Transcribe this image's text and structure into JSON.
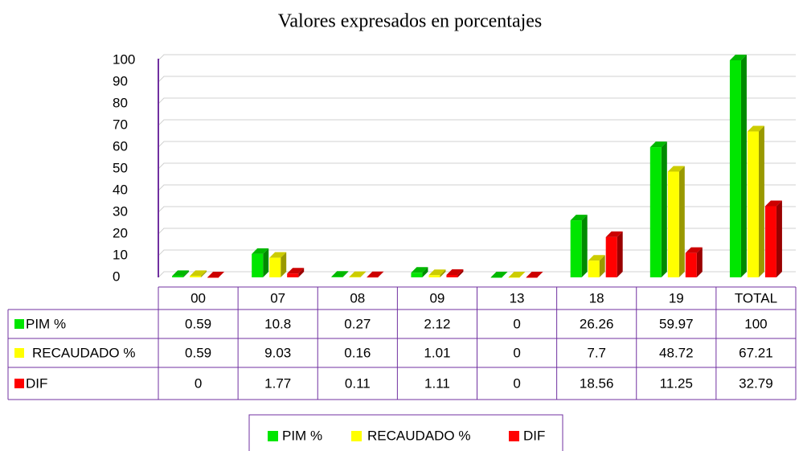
{
  "chart_data": {
    "type": "bar3d",
    "title": "Valores expresados en porcentajes",
    "categories": [
      "00",
      "07",
      "08",
      "09",
      "13",
      "18",
      "19",
      "TOTAL"
    ],
    "series": [
      {
        "name": "PIM %",
        "color": "#00e600",
        "values": [
          0.59,
          10.8,
          0.27,
          2.12,
          0,
          26.26,
          59.97,
          100
        ]
      },
      {
        "name": "RECAUDADO %",
        "color": "#ffff00",
        "values": [
          0.59,
          9.03,
          0.16,
          1.01,
          0,
          7.7,
          48.72,
          67.21
        ]
      },
      {
        "name": "DIF",
        "color": "#ff0000",
        "values": [
          0,
          1.77,
          0.11,
          1.11,
          0,
          18.56,
          11.25,
          32.79
        ]
      }
    ],
    "ylim": [
      0,
      100
    ],
    "yticks": [
      0,
      10,
      20,
      30,
      40,
      50,
      60,
      70,
      80,
      90,
      100
    ],
    "grid": true,
    "legend": "bottom"
  }
}
